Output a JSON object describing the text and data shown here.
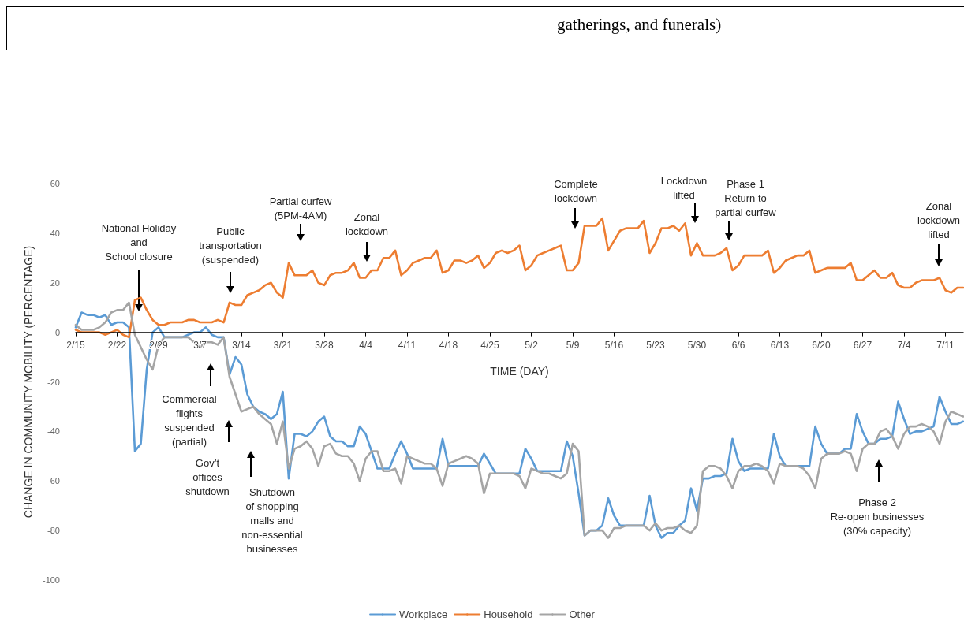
{
  "chart_data": {
    "type": "line",
    "xlabel": "TIME (DAY)",
    "ylabel": "CHANGE IN COMMUNITY MOBILITY (PERCENTAGE)",
    "x": [
      "--02-15",
      "--02-16",
      "--02-17",
      "--02-18",
      "--02-19",
      "--02-20",
      "--02-21",
      "--02-22",
      "--02-23",
      "--02-24",
      "--02-25",
      "--02-26",
      "--02-27",
      "--02-28",
      "--02-29",
      "--03-01",
      "--03-02",
      "--03-03",
      "--03-04",
      "--03-05",
      "--03-06",
      "--03-07",
      "--03-08",
      "--03-09",
      "--03-10",
      "--03-11",
      "--03-12",
      "--03-13",
      "--03-14",
      "--03-15",
      "--03-16",
      "--03-17",
      "--03-18",
      "--03-19",
      "--03-20",
      "--03-21",
      "--03-22",
      "--03-23",
      "--03-24",
      "--03-25",
      "--03-26",
      "--03-27",
      "--03-28",
      "--03-29",
      "--03-30",
      "--03-31",
      "--04-01",
      "--04-02",
      "--04-03",
      "--04-04",
      "--04-05",
      "--04-06",
      "--04-07",
      "--04-08",
      "--04-09",
      "--04-10",
      "--04-11",
      "--04-12",
      "--04-13",
      "--04-14",
      "--04-15",
      "--04-16",
      "--04-17",
      "--04-18",
      "--04-19",
      "--04-20",
      "--04-21",
      "--04-22",
      "--04-23",
      "--04-24",
      "--04-25",
      "--04-26",
      "--04-27",
      "--04-28",
      "--04-29",
      "--04-30",
      "--05-01",
      "--05-02",
      "--05-03",
      "--05-04",
      "--05-05",
      "--05-06",
      "--05-07",
      "--05-08",
      "--05-09",
      "--05-10",
      "--05-11",
      "--05-12",
      "--05-13",
      "--05-14",
      "--05-15",
      "--05-16",
      "--05-17",
      "--05-18",
      "--05-19",
      "--05-20",
      "--05-21",
      "--05-22",
      "--05-23",
      "--05-24",
      "--05-25",
      "--05-26",
      "--05-27",
      "--05-28",
      "--05-29",
      "--05-30",
      "--05-31",
      "--06-01",
      "--06-02",
      "--06-03",
      "--06-04",
      "--06-05",
      "--06-06",
      "--06-07",
      "--06-08",
      "--06-09",
      "--06-10",
      "--06-11",
      "--06-12",
      "--06-13",
      "--06-14",
      "--06-15",
      "--06-16",
      "--06-17",
      "--06-18",
      "--06-19",
      "--06-20",
      "--06-21",
      "--06-22",
      "--06-23",
      "--06-24",
      "--06-25",
      "--06-26",
      "--06-27",
      "--06-28",
      "--06-29",
      "--06-30",
      "--07-01",
      "--07-02",
      "--07-03",
      "--07-04",
      "--07-05",
      "--07-06",
      "--07-07",
      "--07-08",
      "--07-09",
      "--07-10",
      "--07-11",
      "--07-12",
      "--07-13",
      "--07-14"
    ],
    "series": [
      {
        "name": "Workplace",
        "color": "#5b9bd5",
        "values": [
          2,
          8,
          7,
          7,
          6,
          7,
          3,
          4,
          4,
          2,
          -48,
          -45,
          -15,
          0,
          2,
          -2,
          -2,
          -2,
          -2,
          -1,
          0,
          0,
          2,
          -1,
          -2,
          -2,
          -17,
          -10,
          -13,
          -25,
          -30,
          -32,
          -33,
          -35,
          -33,
          -24,
          -59,
          -41,
          -41,
          -42,
          -40,
          -36,
          -34,
          -42,
          -44,
          -44,
          -46,
          -46,
          -38,
          -41,
          -48,
          -55,
          -55,
          -55,
          -49,
          -44,
          -49,
          -55,
          -55,
          -55,
          -55,
          -55,
          -43,
          -54,
          -54,
          -54,
          -54,
          -54,
          -54,
          -49,
          -53,
          -57,
          -57,
          -57,
          -57,
          -57,
          -47,
          -51,
          -56,
          -56,
          -56,
          -56,
          -56,
          -44,
          -50,
          -65,
          -82,
          -80,
          -80,
          -78,
          -67,
          -74,
          -78,
          -78,
          -78,
          -78,
          -78,
          -66,
          -78,
          -83,
          -81,
          -81,
          -78,
          -76,
          -63,
          -72,
          -59,
          -59,
          -58,
          -58,
          -57,
          -43,
          -52,
          -56,
          -55,
          -55,
          -55,
          -55,
          -41,
          -50,
          -54,
          -54,
          -54,
          -54,
          -54,
          -38,
          -45,
          -49,
          -49,
          -49,
          -47,
          -47,
          -33,
          -40,
          -45,
          -45,
          -43,
          -43,
          -42,
          -28,
          -35,
          -41,
          -40,
          -40,
          -39,
          -38,
          -26,
          -32,
          -37,
          -37,
          -36
        ]
      },
      {
        "name": "Household",
        "color": "#ed7d31",
        "values": [
          1,
          0,
          0,
          0,
          0,
          -1,
          0,
          1,
          -1,
          -2,
          13,
          14,
          9,
          5,
          3,
          3,
          4,
          4,
          4,
          5,
          5,
          4,
          4,
          4,
          5,
          4,
          12,
          11,
          11,
          15,
          16,
          17,
          19,
          20,
          16,
          14,
          28,
          23,
          23,
          23,
          25,
          20,
          19,
          23,
          24,
          24,
          25,
          28,
          22,
          22,
          25,
          25,
          30,
          30,
          33,
          23,
          25,
          28,
          29,
          30,
          30,
          33,
          24,
          25,
          29,
          29,
          28,
          29,
          31,
          26,
          28,
          32,
          33,
          32,
          33,
          35,
          25,
          27,
          31,
          32,
          33,
          34,
          35,
          25,
          25,
          28,
          43,
          43,
          43,
          46,
          33,
          37,
          41,
          42,
          42,
          42,
          45,
          32,
          36,
          42,
          42,
          43,
          41,
          44,
          31,
          36,
          31,
          31,
          31,
          32,
          34,
          25,
          27,
          31,
          31,
          31,
          31,
          33,
          24,
          26,
          29,
          30,
          31,
          31,
          33,
          24,
          25,
          26,
          26,
          26,
          26,
          28,
          21,
          21,
          23,
          25,
          22,
          22,
          24,
          19,
          18,
          18,
          20,
          21,
          21,
          21,
          22,
          17,
          16,
          18,
          18
        ]
      },
      {
        "name": "Other",
        "color": "#a5a5a5",
        "values": [
          3,
          1,
          1,
          1,
          2,
          4,
          8,
          9,
          9,
          12,
          -1,
          -6,
          -11,
          -15,
          -5,
          -2,
          -2,
          -2,
          -2,
          -2,
          -4,
          -6,
          -4,
          -4,
          -5,
          -2,
          -18,
          -25,
          -32,
          -31,
          -30,
          -33,
          -35,
          -37,
          -45,
          -36,
          -55,
          -47,
          -46,
          -44,
          -47,
          -54,
          -46,
          -45,
          -49,
          -50,
          -50,
          -53,
          -60,
          -51,
          -48,
          -48,
          -56,
          -56,
          -55,
          -61,
          -50,
          -51,
          -52,
          -53,
          -53,
          -55,
          -62,
          -53,
          -52,
          -51,
          -50,
          -51,
          -53,
          -65,
          -57,
          -57,
          -57,
          -57,
          -57,
          -58,
          -63,
          -55,
          -56,
          -57,
          -57,
          -58,
          -59,
          -57,
          -45,
          -48,
          -82,
          -80,
          -80,
          -80,
          -83,
          -79,
          -79,
          -78,
          -78,
          -78,
          -78,
          -80,
          -77,
          -80,
          -79,
          -79,
          -78,
          -80,
          -81,
          -78,
          -56,
          -54,
          -54,
          -55,
          -58,
          -63,
          -56,
          -54,
          -54,
          -53,
          -54,
          -56,
          -61,
          -53,
          -54,
          -54,
          -54,
          -55,
          -58,
          -63,
          -51,
          -49,
          -49,
          -49,
          -48,
          -49,
          -56,
          -47,
          -45,
          -45,
          -40,
          -39,
          -42,
          -47,
          -41,
          -38,
          -38,
          -37,
          -38,
          -40,
          -45,
          -36,
          -32,
          -33,
          -34
        ]
      }
    ],
    "xlim": [
      "--02-15",
      "--07-14"
    ],
    "xticks": [
      {
        "value": "--02-15",
        "label": "2/15"
      },
      {
        "value": "--02-22",
        "label": "2/22"
      },
      {
        "value": "--02-29",
        "label": "2/29"
      },
      {
        "value": "--03-07",
        "label": "3/7"
      },
      {
        "value": "--03-14",
        "label": "3/14"
      },
      {
        "value": "--03-21",
        "label": "3/21"
      },
      {
        "value": "--03-28",
        "label": "3/28"
      },
      {
        "value": "--04-04",
        "label": "4/4"
      },
      {
        "value": "--04-11",
        "label": "4/11"
      },
      {
        "value": "--04-18",
        "label": "4/18"
      },
      {
        "value": "--04-25",
        "label": "4/25"
      },
      {
        "value": "--05-02",
        "label": "5/2"
      },
      {
        "value": "--05-09",
        "label": "5/9"
      },
      {
        "value": "--05-16",
        "label": "5/16"
      },
      {
        "value": "--05-23",
        "label": "5/23"
      },
      {
        "value": "--05-30",
        "label": "5/30"
      },
      {
        "value": "--06-06",
        "label": "6/6"
      },
      {
        "value": "--06-13",
        "label": "6/13"
      },
      {
        "value": "--06-20",
        "label": "6/20"
      },
      {
        "value": "--06-27",
        "label": "6/27"
      },
      {
        "value": "--07-04",
        "label": "7/4"
      },
      {
        "value": "--07-11",
        "label": "7/11"
      }
    ],
    "ylim": [
      -100,
      60
    ],
    "yticks": [
      -100,
      -80,
      -60,
      -40,
      -20,
      0,
      20,
      40,
      60
    ],
    "marker": "none",
    "legend": "bottom",
    "annotations": [
      "gatherings, and funerals)",
      "National Holiday\nand\nSchool closure",
      "Public\ntransportation\n(suspended)",
      "Partial curfew\n(5PM-4AM)",
      "Zonal\nlockdown",
      "Complete\nlockdown",
      "Lockdown\nlifted",
      "Phase 1\nReturn to\npartial curfew",
      "Zonal\nlockdown\nlifted",
      "Commercial\nflights\nsuspended\n(partial)",
      "Gov’t\noffices\nshutdown",
      "Shutdown\nof shopping\nmalls and\nnon-essential\nbusinesses",
      "Phase 2\nRe-open businesses\n(30% capacity)"
    ]
  }
}
